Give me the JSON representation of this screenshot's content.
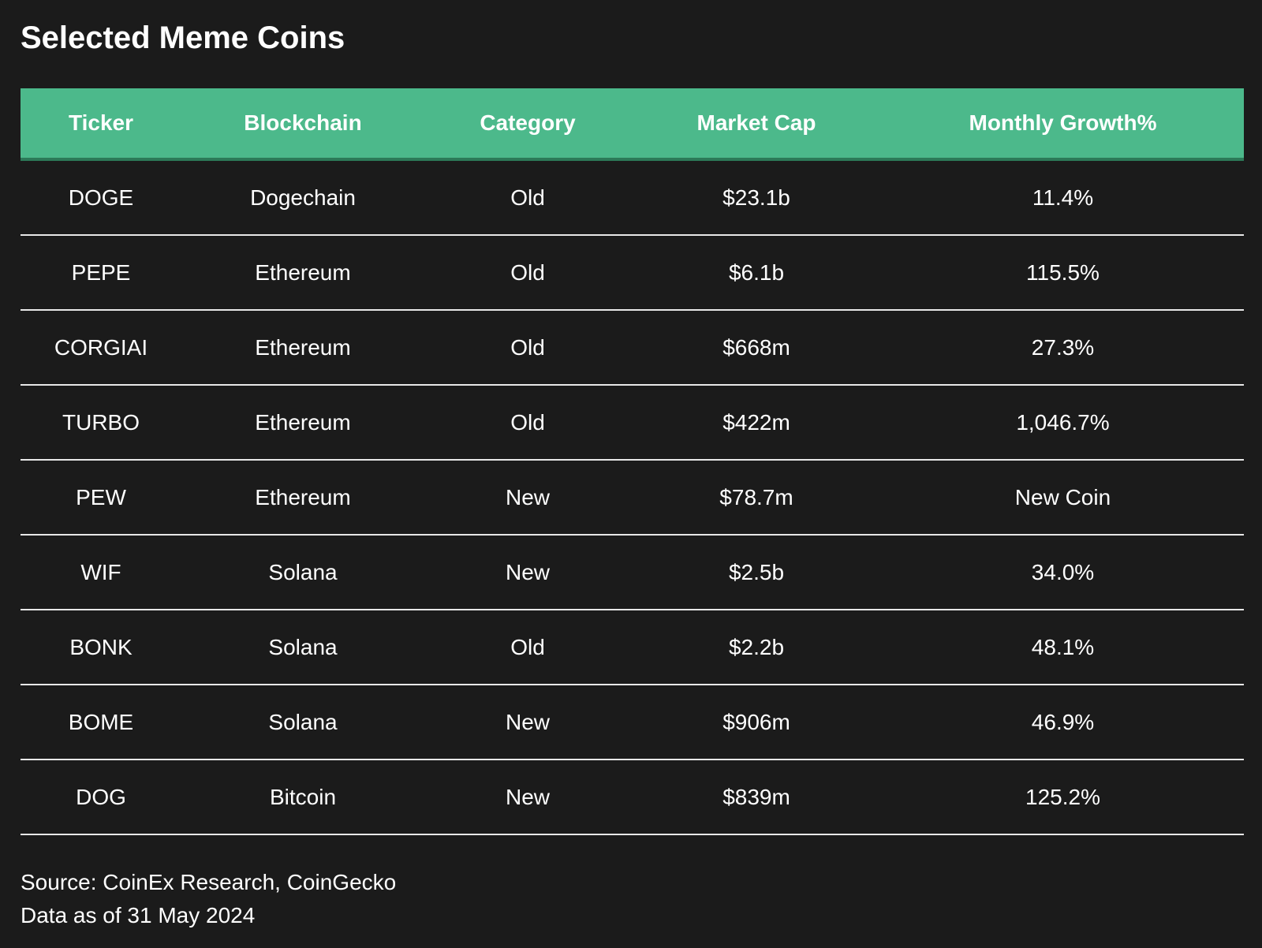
{
  "header": {
    "title": "Selected Meme Coins"
  },
  "table": {
    "columns": [
      "Ticker",
      "Blockchain",
      "Category",
      "Market Cap",
      "Monthly Growth%"
    ],
    "rows": [
      [
        "DOGE",
        "Dogechain",
        "Old",
        "$23.1b",
        "11.4%"
      ],
      [
        "PEPE",
        "Ethereum",
        "Old",
        "$6.1b",
        "115.5%"
      ],
      [
        "CORGIAI",
        "Ethereum",
        "Old",
        "$668m",
        "27.3%"
      ],
      [
        "TURBO",
        "Ethereum",
        "Old",
        "$422m",
        "1,046.7%"
      ],
      [
        "PEW",
        "Ethereum",
        "New",
        "$78.7m",
        "New Coin"
      ],
      [
        "WIF",
        "Solana",
        "New",
        "$2.5b",
        "34.0%"
      ],
      [
        "BONK",
        "Solana",
        "Old",
        "$2.2b",
        "48.1%"
      ],
      [
        "BOME",
        "Solana",
        "New",
        "$906m",
        "46.9%"
      ],
      [
        "DOG",
        "Bitcoin",
        "New",
        "$839m",
        "125.2%"
      ]
    ]
  },
  "footer": {
    "lines": [
      "Source: CoinEx Research, CoinGecko",
      "Data as of 31 May 2024"
    ]
  }
}
